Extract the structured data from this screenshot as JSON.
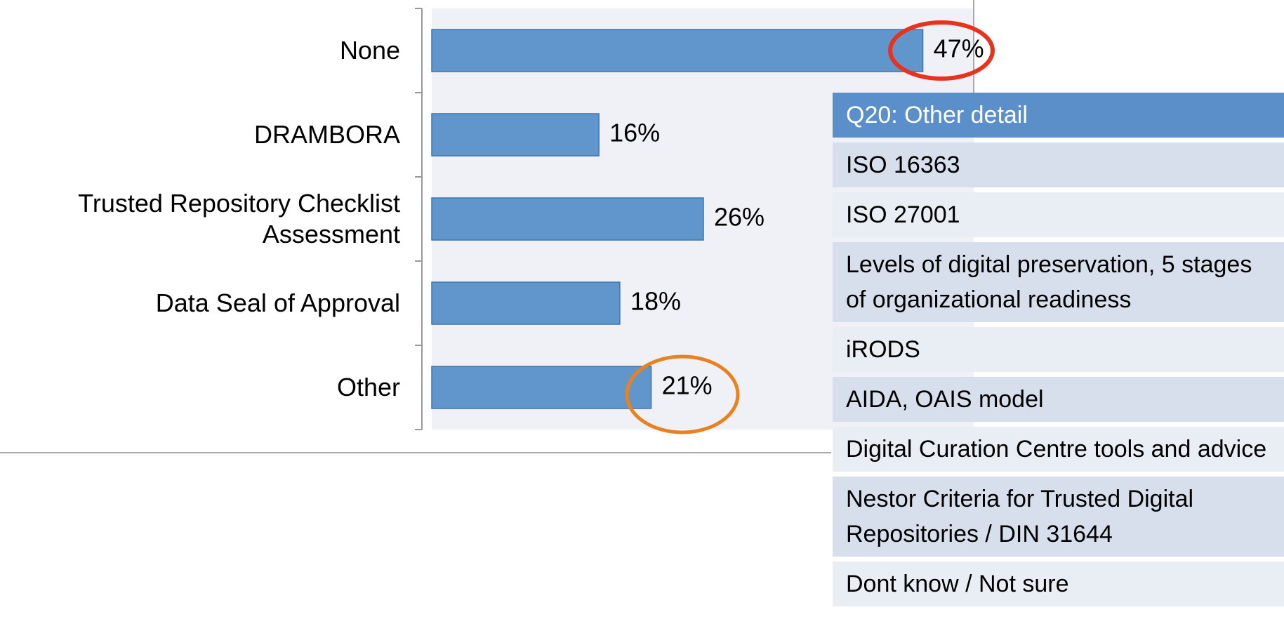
{
  "chart_data": {
    "type": "bar",
    "orientation": "horizontal",
    "categories": [
      "None",
      "DRAMBORA",
      "Trusted Repository Checklist Assessment",
      "Data Seal of Approval",
      "Other"
    ],
    "values": [
      47,
      16,
      26,
      18,
      21
    ],
    "value_labels": [
      "47%",
      "16%",
      "26%",
      "18%",
      "21%"
    ],
    "color": "#6096cb",
    "xlim": [
      0,
      52
    ]
  },
  "table": {
    "header": "Q20: Other detail",
    "rows": [
      "ISO 16363",
      "ISO 27001",
      "Levels of digital preservation, 5 stages of organizational readiness",
      "iRODS",
      "AIDA, OAIS model",
      "Digital Curation Centre tools and advice",
      "Nestor Criteria for Trusted Digital Repositories / DIN 31644",
      "Dont know / Not sure"
    ]
  }
}
